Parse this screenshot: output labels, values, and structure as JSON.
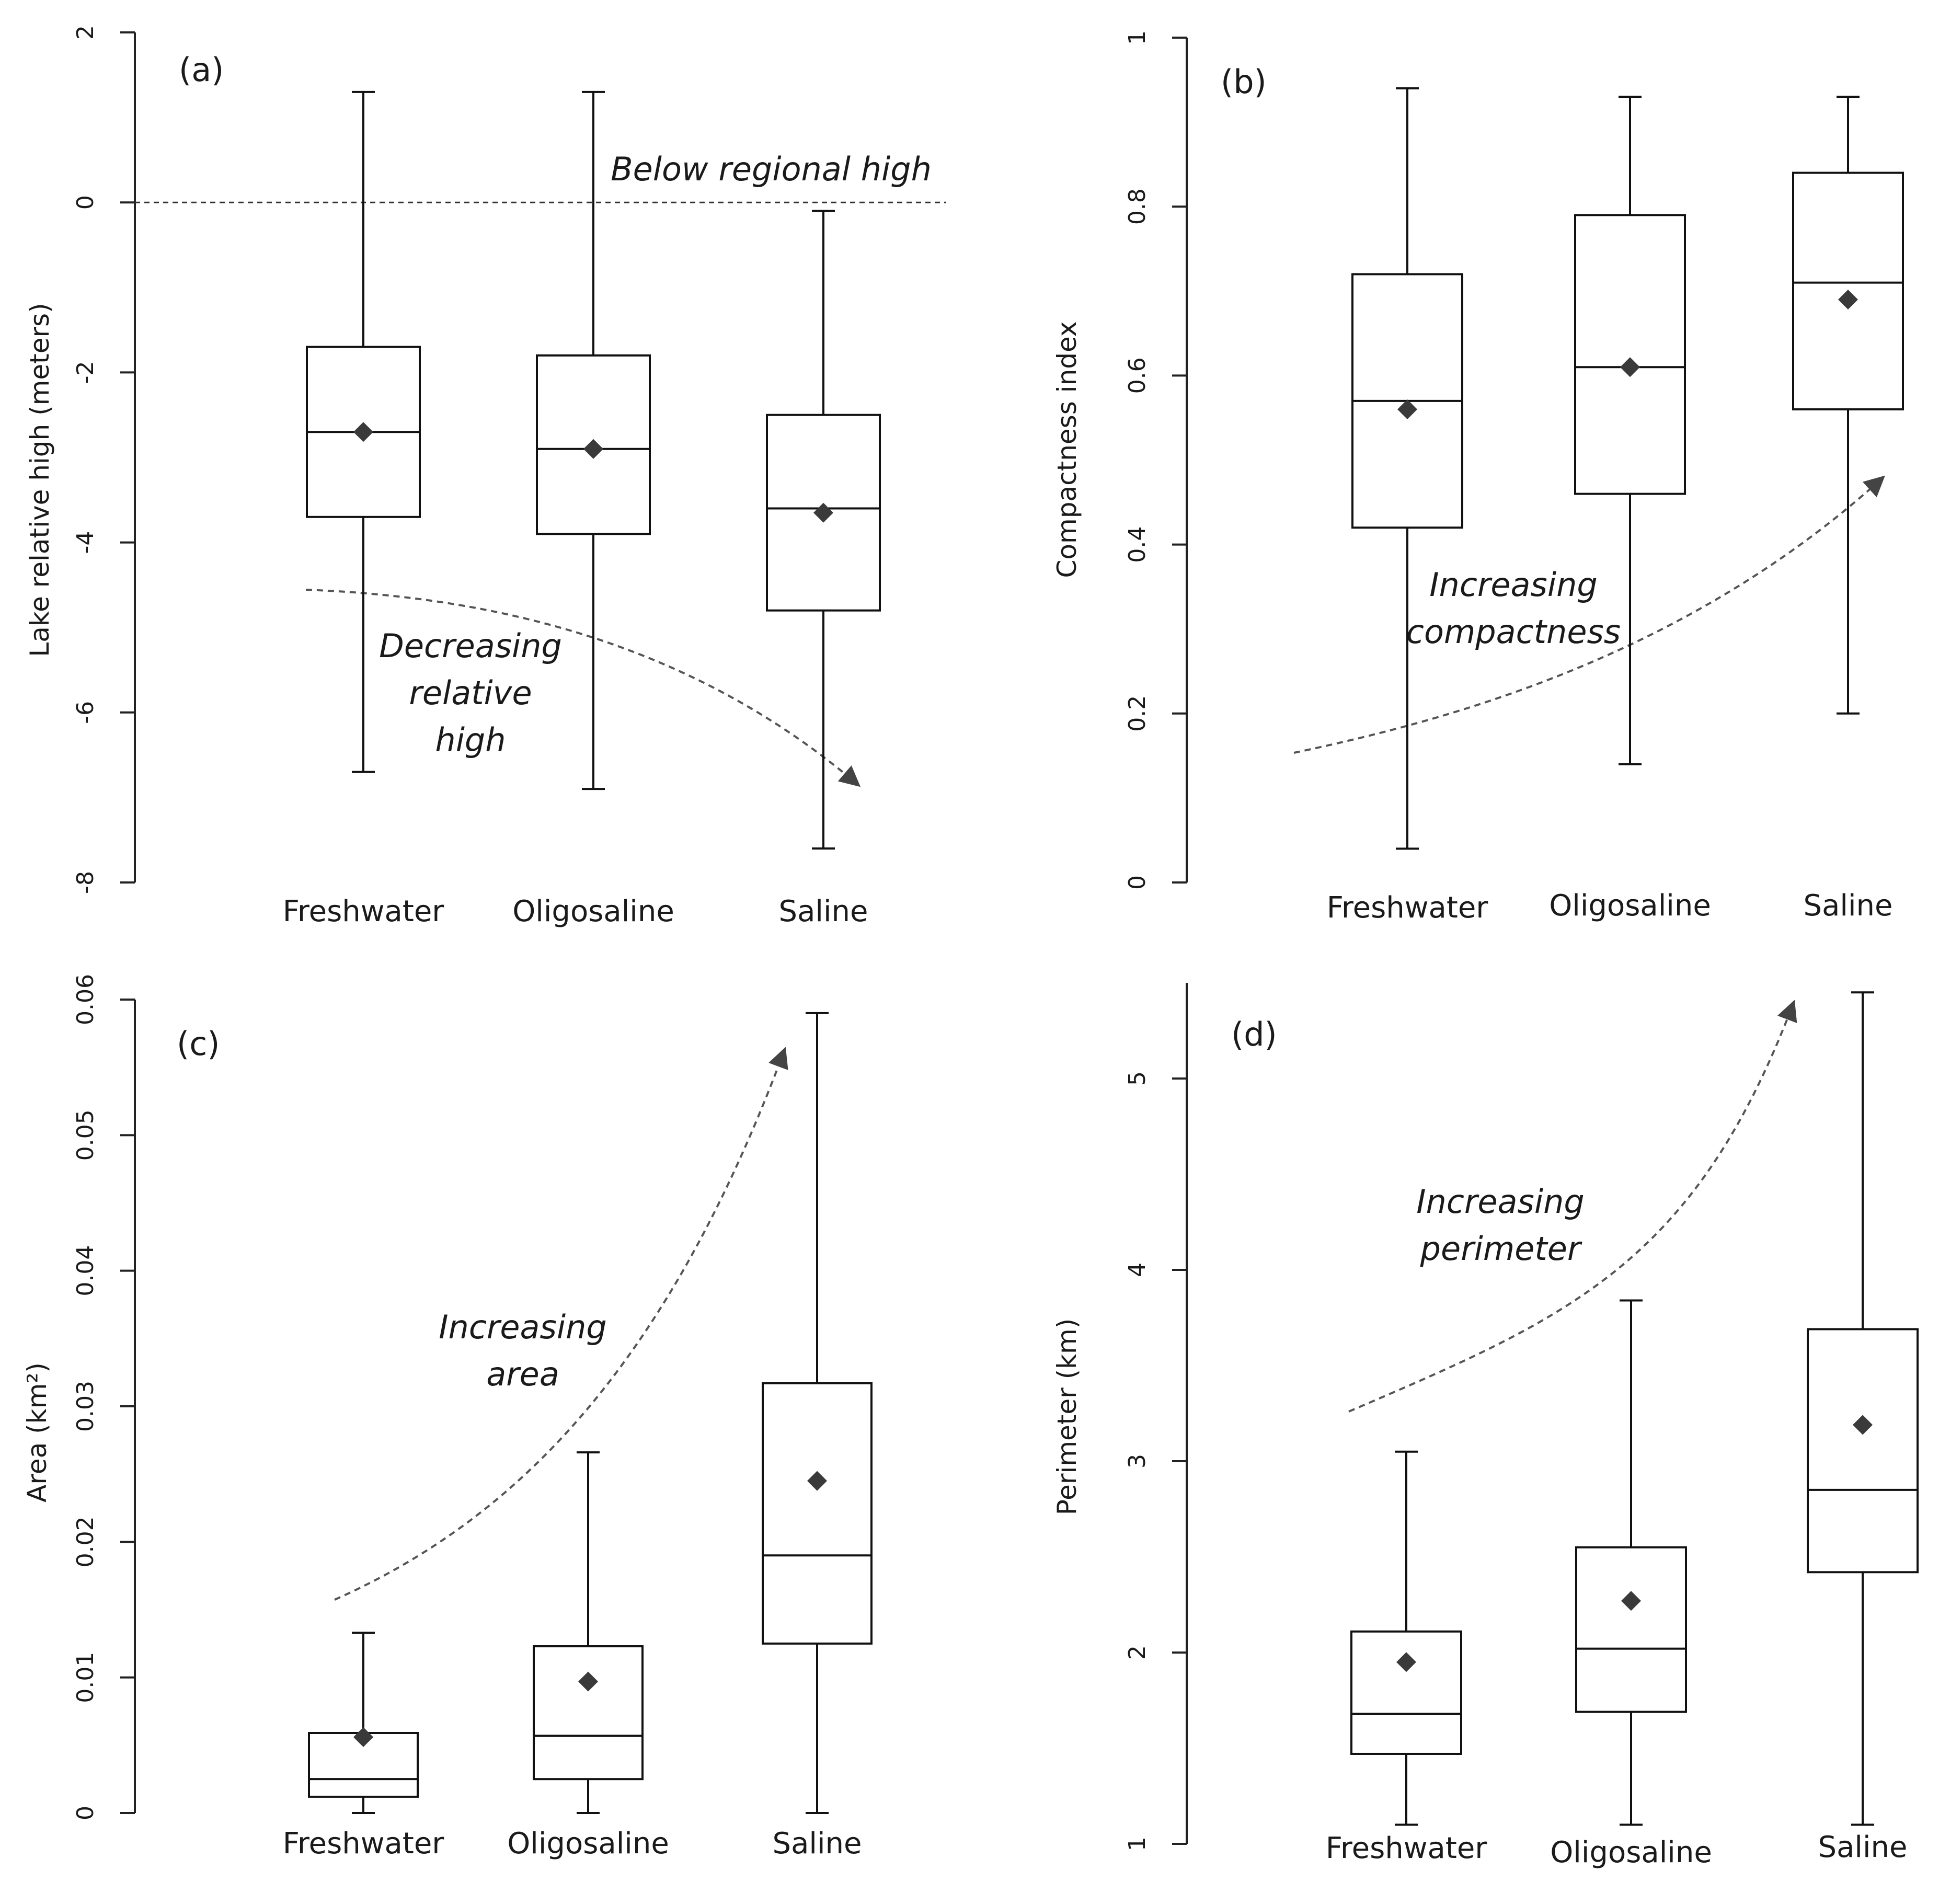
{
  "figure": {
    "panels": [
      "a",
      "b",
      "c",
      "d"
    ]
  },
  "chart_data": [
    {
      "type": "boxplot",
      "panel_label": "(a)",
      "ylabel": "Lake relative high (meters)",
      "ylim": [
        -8,
        2
      ],
      "yticks": [
        -8,
        -6,
        -4,
        -2,
        0,
        2
      ],
      "ytick_labels": [
        "-8",
        "-6",
        "-4",
        "-2",
        "0",
        "2"
      ],
      "categories": [
        "Freshwater",
        "Oligosaline",
        "Saline"
      ],
      "boxes": [
        {
          "min": -6.7,
          "q1": -3.7,
          "median": -2.7,
          "q3": -1.7,
          "max": 1.3,
          "mean": -2.7
        },
        {
          "min": -6.9,
          "q1": -3.9,
          "median": -2.9,
          "q3": -1.8,
          "max": 1.3,
          "mean": -2.9
        },
        {
          "min": -7.6,
          "q1": -4.8,
          "median": -3.6,
          "q3": -2.5,
          "max": -0.1,
          "mean": -3.65
        }
      ],
      "reference_line": {
        "y": 0,
        "label": "Below regional high"
      },
      "trend": {
        "label_lines": [
          "Decreasing",
          "relative",
          "high"
        ],
        "direction": "decreasing"
      },
      "grid": false
    },
    {
      "type": "boxplot",
      "panel_label": "(b)",
      "ylabel": "Compactness index",
      "ylim": [
        0,
        1
      ],
      "yticks": [
        0,
        0.2,
        0.4,
        0.6,
        0.8,
        1
      ],
      "ytick_labels": [
        "0",
        "0.2",
        "0.4",
        "0.6",
        "0.8",
        "1"
      ],
      "categories": [
        "Freshwater",
        "Oligosaline",
        "Saline"
      ],
      "boxes": [
        {
          "min": 0.04,
          "q1": 0.42,
          "median": 0.57,
          "q3": 0.72,
          "max": 0.94,
          "mean": 0.56
        },
        {
          "min": 0.14,
          "q1": 0.46,
          "median": 0.61,
          "q3": 0.79,
          "max": 0.93,
          "mean": 0.61
        },
        {
          "min": 0.2,
          "q1": 0.56,
          "median": 0.71,
          "q3": 0.84,
          "max": 0.93,
          "mean": 0.69
        }
      ],
      "trend": {
        "label_lines": [
          "Increasing",
          "compactness"
        ],
        "direction": "increasing"
      },
      "grid": false
    },
    {
      "type": "boxplot",
      "panel_label": "(c)",
      "ylabel": "Area (km²)",
      "ylim": [
        0,
        0.06
      ],
      "yticks": [
        0,
        0.01,
        0.02,
        0.03,
        0.04,
        0.05,
        0.06
      ],
      "ytick_labels": [
        "0",
        "0.01",
        "0.02",
        "0.03",
        "0.04",
        "0.05",
        "0.06"
      ],
      "categories": [
        "Freshwater",
        "Oligosaline",
        "Saline"
      ],
      "boxes": [
        {
          "min": 0.0,
          "q1": 0.0012,
          "median": 0.0025,
          "q3": 0.0059,
          "max": 0.0133,
          "mean": 0.0056
        },
        {
          "min": 0.0,
          "q1": 0.0025,
          "median": 0.0057,
          "q3": 0.0123,
          "max": 0.0266,
          "mean": 0.0097
        },
        {
          "min": 0.0,
          "q1": 0.0125,
          "median": 0.019,
          "q3": 0.0317,
          "max": 0.059,
          "mean": 0.0245
        }
      ],
      "trend": {
        "label_lines": [
          "Increasing",
          "area"
        ],
        "direction": "increasing"
      },
      "grid": false
    },
    {
      "type": "boxplot",
      "panel_label": "(d)",
      "ylabel": "Perimeter (km)",
      "ylim": [
        1,
        5.5
      ],
      "yticks": [
        1,
        2,
        3,
        4,
        5
      ],
      "ytick_labels": [
        "1",
        "2",
        "3",
        "4",
        "5"
      ],
      "categories": [
        "Freshwater",
        "Oligosaline",
        "Saline"
      ],
      "boxes": [
        {
          "min": 1.1,
          "q1": 1.47,
          "median": 1.68,
          "q3": 2.11,
          "max": 3.05,
          "mean": 1.95
        },
        {
          "min": 1.1,
          "q1": 1.69,
          "median": 2.02,
          "q3": 2.55,
          "max": 3.84,
          "mean": 2.27
        },
        {
          "min": 1.1,
          "q1": 2.42,
          "median": 2.85,
          "q3": 3.69,
          "max": 5.45,
          "mean": 3.19
        }
      ],
      "trend": {
        "label_lines": [
          "Increasing",
          "perimeter"
        ],
        "direction": "increasing"
      },
      "grid": false
    }
  ]
}
